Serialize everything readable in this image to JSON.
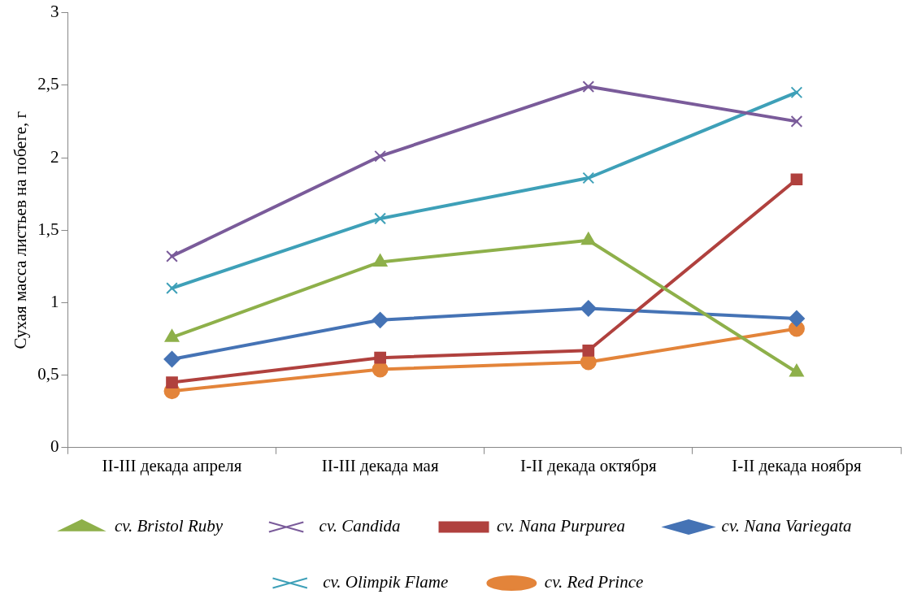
{
  "chart_data": {
    "type": "line",
    "ylabel": "Сухая масса листьев на побеге, г",
    "categories": [
      "II-III декада апреля",
      "II-III декада мая",
      "I-II декада октября",
      "I-II декада ноября"
    ],
    "series": [
      {
        "name": "cv. Bristol Ruby",
        "color": "#8eb04a",
        "marker": "triangle",
        "values": [
          0.76,
          1.28,
          1.43,
          0.52
        ]
      },
      {
        "name": "cv. Candida",
        "color": "#7a5b9a",
        "marker": "cross",
        "values": [
          1.32,
          2.01,
          2.49,
          2.25
        ]
      },
      {
        "name": "cv. Nana Purpurea",
        "color": "#b0413e",
        "marker": "square",
        "values": [
          0.45,
          0.62,
          0.67,
          1.85
        ]
      },
      {
        "name": "cv. Nana Variegata",
        "color": "#4573b5",
        "marker": "diamond",
        "values": [
          0.61,
          0.88,
          0.96,
          0.89
        ]
      },
      {
        "name": "cv. Olimpik Flame",
        "color": "#3ea0b8",
        "marker": "cross",
        "values": [
          1.1,
          1.58,
          1.86,
          2.45
        ]
      },
      {
        "name": "cv. Red Prince",
        "color": "#e3843a",
        "marker": "circle",
        "values": [
          0.39,
          0.54,
          0.59,
          0.82
        ]
      }
    ],
    "ylim": [
      0,
      3
    ],
    "yticks": [
      0,
      {
        "value": 0.5,
        "label": "0,5"
      },
      1,
      {
        "value": 1.5,
        "label": "1,5"
      },
      2,
      {
        "value": 2.5,
        "label": "2,5"
      },
      3
    ],
    "grid": false,
    "legend": "bottom",
    "line_style": "solid"
  }
}
